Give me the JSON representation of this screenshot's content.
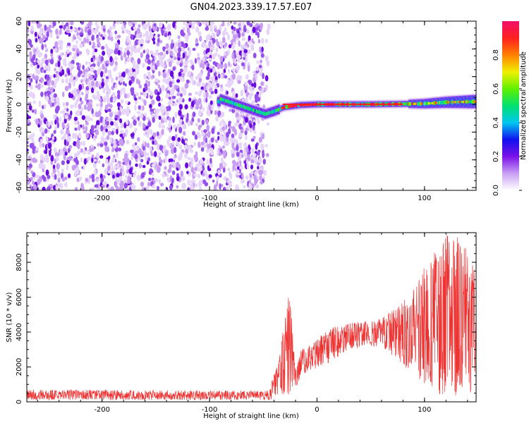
{
  "title": "GN04.2023.339.17.57.E07",
  "chart_data": [
    {
      "type": "heatmap",
      "title": "GN04.2023.339.17.57.E07",
      "xlabel": "Height of straight line (km)",
      "ylabel": "Frequency (Hz)",
      "xlim": [
        -270,
        148
      ],
      "ylim": [
        -62,
        60
      ],
      "x_ticks": [
        -200,
        -100,
        0,
        100
      ],
      "y_ticks": [
        -60,
        -40,
        -20,
        0,
        20,
        40,
        60
      ],
      "colorbar": {
        "label": "Normalized spectral amplitude",
        "range": [
          0.0,
          1.0
        ],
        "ticks": [
          0.0,
          0.2,
          0.4,
          0.6,
          0.8
        ],
        "colormap": [
          "#ffffff",
          "#c9a0f4",
          "#7a10e8",
          "#1010f0",
          "#00c8f0",
          "#00e070",
          "#60f000",
          "#f0f000",
          "#ff8000",
          "#ff2020",
          "#f0106a"
        ]
      },
      "regions": [
        {
          "name": "broadband noise",
          "x_range": [
            -270,
            -50
          ],
          "freq_range": [
            -62,
            60
          ],
          "amplitude": [
            0.0,
            0.2
          ]
        },
        {
          "name": "onset",
          "x_range": [
            -92,
            -40
          ],
          "freq_center": [
            3,
            -8
          ],
          "amplitude": [
            0.3,
            0.6
          ]
        },
        {
          "name": "narrowband line",
          "x_range": [
            -35,
            148
          ],
          "freq_center": 0,
          "amplitude": [
            0.8,
            1.0
          ]
        }
      ],
      "line_center": [
        {
          "x": -90,
          "f": 4
        },
        {
          "x": -75,
          "f": 0
        },
        {
          "x": -60,
          "f": -4
        },
        {
          "x": -48,
          "f": -7
        },
        {
          "x": -40,
          "f": -5
        },
        {
          "x": -30,
          "f": -2
        },
        {
          "x": -15,
          "f": -0.5
        },
        {
          "x": 0,
          "f": 0
        },
        {
          "x": 50,
          "f": 0
        },
        {
          "x": 100,
          "f": 0.5
        },
        {
          "x": 120,
          "f": 1.5
        },
        {
          "x": 148,
          "f": 2
        }
      ]
    },
    {
      "type": "line",
      "xlabel": "Height of straight line (km)",
      "ylabel": "SNR (10 * v/v)",
      "xlim": [
        -270,
        148
      ],
      "ylim": [
        0,
        9700
      ],
      "x_ticks": [
        -200,
        -100,
        0,
        100
      ],
      "y_ticks": [
        0,
        2000,
        4000,
        6000,
        8000
      ],
      "color": "#ee3333",
      "series": [
        {
          "envelope": [
            {
              "x": -270,
              "low": 100,
              "high": 700
            },
            {
              "x": -200,
              "low": 100,
              "high": 700
            },
            {
              "x": -100,
              "low": 100,
              "high": 650
            },
            {
              "x": -45,
              "low": 100,
              "high": 650
            },
            {
              "x": -35,
              "low": 300,
              "high": 2500
            },
            {
              "x": -26,
              "low": 400,
              "high": 6600
            },
            {
              "x": -20,
              "low": 700,
              "high": 1800
            },
            {
              "x": -15,
              "low": 1500,
              "high": 3000
            },
            {
              "x": -5,
              "low": 1800,
              "high": 3300
            },
            {
              "x": 10,
              "low": 2200,
              "high": 4200
            },
            {
              "x": 30,
              "low": 3000,
              "high": 4500
            },
            {
              "x": 60,
              "low": 3200,
              "high": 4800
            },
            {
              "x": 85,
              "low": 1800,
              "high": 6000
            },
            {
              "x": 105,
              "low": 600,
              "high": 8300
            },
            {
              "x": 122,
              "low": 300,
              "high": 9700
            },
            {
              "x": 140,
              "low": 400,
              "high": 9300
            },
            {
              "x": 148,
              "low": 600,
              "high": 7000
            }
          ]
        }
      ]
    }
  ]
}
